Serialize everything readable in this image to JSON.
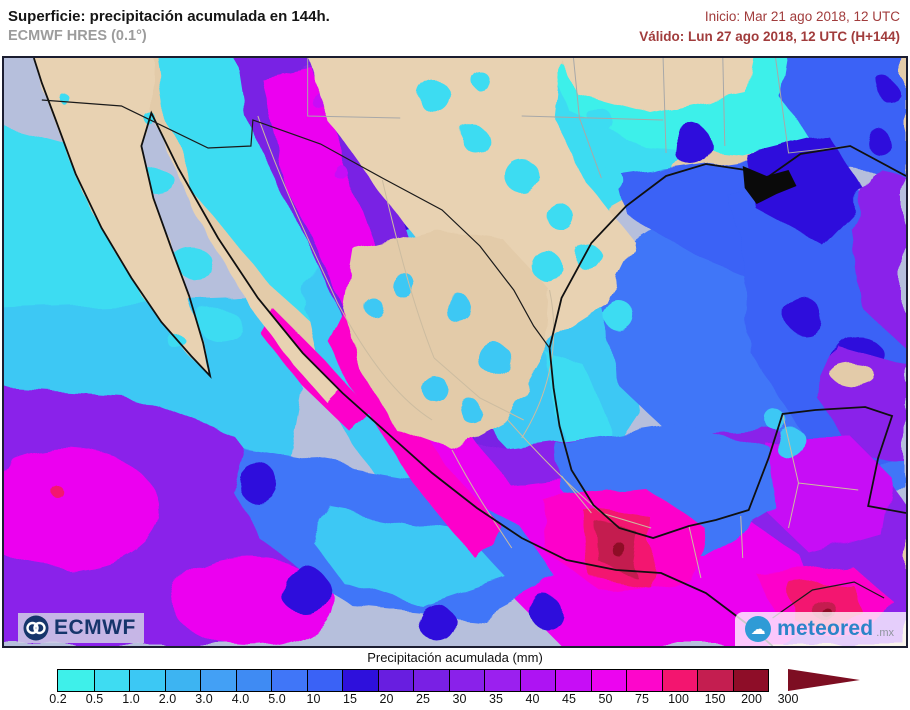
{
  "header": {
    "title": "Superficie: precipitación acumulada en 144h.",
    "model": "ECMWF HRES (0.1°)",
    "inicio": "Inicio: Mar 21 ago 2018, 12 UTC",
    "valido": "Válido: Lun 27 ago 2018, 12 UTC (H+144)",
    "date_color": "#a13c3c"
  },
  "map": {
    "ecmwf_logo": "ECMWF",
    "meteored_logo": "meteored",
    "meteored_domain": ".mx",
    "ocean_color": "#b6bfdc",
    "land_color": "#e3cba9",
    "coastline_color": "#101010"
  },
  "legend": {
    "title": "Precipitación acumulada (mm)",
    "values": [
      "0.2",
      "0.5",
      "1.0",
      "2.0",
      "3.0",
      "4.0",
      "5.0",
      "10",
      "15",
      "20",
      "25",
      "30",
      "35",
      "40",
      "45",
      "50",
      "75",
      "100",
      "150",
      "200",
      "300"
    ],
    "colors": [
      "#3EF0EA",
      "#3EDCF2",
      "#3CC8F4",
      "#3DB4F2",
      "#43A0F5",
      "#3F8BF3",
      "#4076F8",
      "#3A62F6",
      "#2E10DC",
      "#681EE0",
      "#7920E4",
      "#8A21EA",
      "#9B20EF",
      "#AE13F3",
      "#C70DF6",
      "#EC04F0",
      "#FD06CB",
      "#F3156F",
      "#C41E50",
      "#8E0D28"
    ],
    "arrow_color": "#7D0E22"
  }
}
